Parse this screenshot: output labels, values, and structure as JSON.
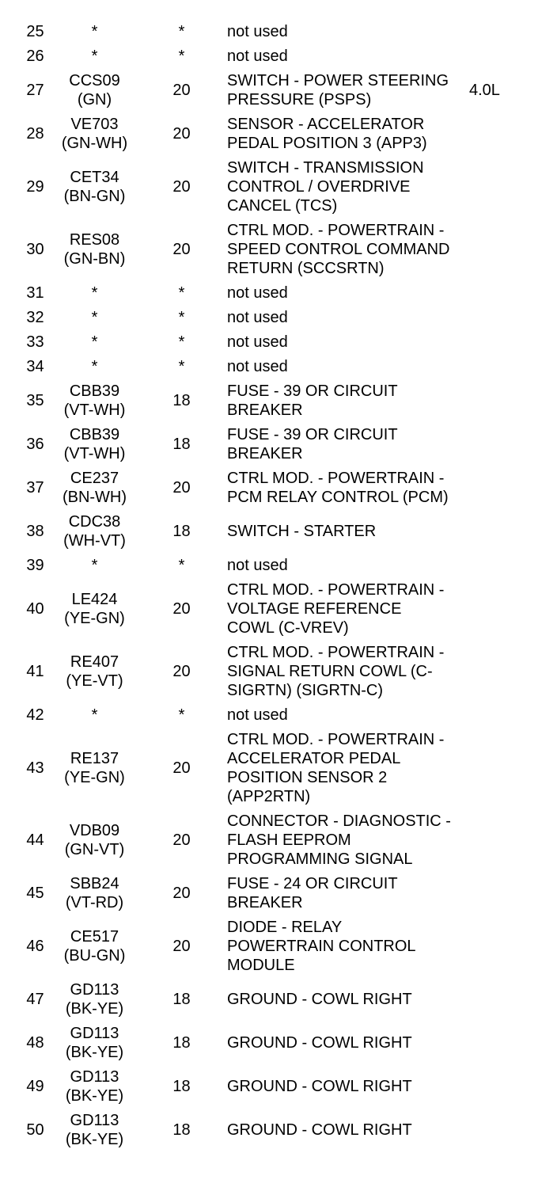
{
  "page": {
    "background_color": "#ffffff",
    "text_color": "#000000",
    "type": "connector-pinout-table"
  },
  "table": {
    "rows": [
      {
        "pin": "25",
        "circuit": "*",
        "color": "",
        "gauge": "*",
        "description": "not used",
        "note": ""
      },
      {
        "pin": "26",
        "circuit": "*",
        "color": "",
        "gauge": "*",
        "description": "not used",
        "note": ""
      },
      {
        "pin": "27",
        "circuit": "CCS09",
        "color": "(GN)",
        "gauge": "20",
        "description": "SWITCH - POWER STEERING\nPRESSURE (PSPS)",
        "note": "4.0L"
      },
      {
        "pin": "28",
        "circuit": "VE703",
        "color": "(GN-WH)",
        "gauge": "20",
        "description": "SENSOR - ACCELERATOR\nPEDAL POSITION 3 (APP3)",
        "note": ""
      },
      {
        "pin": "29",
        "circuit": "CET34",
        "color": "(BN-GN)",
        "gauge": "20",
        "description": "SWITCH - TRANSMISSION\nCONTROL / OVERDRIVE\nCANCEL (TCS)",
        "note": ""
      },
      {
        "pin": "30",
        "circuit": "RES08",
        "color": "(GN-BN)",
        "gauge": "20",
        "description": "CTRL MOD. - POWERTRAIN -\nSPEED CONTROL COMMAND\nRETURN (SCCSRTN)",
        "note": ""
      },
      {
        "pin": "31",
        "circuit": "*",
        "color": "",
        "gauge": "*",
        "description": "not used",
        "note": ""
      },
      {
        "pin": "32",
        "circuit": "*",
        "color": "",
        "gauge": "*",
        "description": "not used",
        "note": ""
      },
      {
        "pin": "33",
        "circuit": "*",
        "color": "",
        "gauge": "*",
        "description": "not used",
        "note": ""
      },
      {
        "pin": "34",
        "circuit": "*",
        "color": "",
        "gauge": "*",
        "description": "not used",
        "note": ""
      },
      {
        "pin": "35",
        "circuit": "CBB39",
        "color": "(VT-WH)",
        "gauge": "18",
        "description": "FUSE - 39 OR CIRCUIT\nBREAKER",
        "note": ""
      },
      {
        "pin": "36",
        "circuit": "CBB39",
        "color": "(VT-WH)",
        "gauge": "18",
        "description": "FUSE - 39 OR CIRCUIT\nBREAKER",
        "note": ""
      },
      {
        "pin": "37",
        "circuit": "CE237",
        "color": "(BN-WH)",
        "gauge": "20",
        "description": "CTRL MOD. - POWERTRAIN -\nPCM RELAY CONTROL (PCM)",
        "note": ""
      },
      {
        "pin": "38",
        "circuit": "CDC38",
        "color": "(WH-VT)",
        "gauge": "18",
        "description": "SWITCH - STARTER",
        "note": ""
      },
      {
        "pin": "39",
        "circuit": "*",
        "color": "",
        "gauge": "*",
        "description": "not used",
        "note": ""
      },
      {
        "pin": "40",
        "circuit": "LE424",
        "color": "(YE-GN)",
        "gauge": "20",
        "description": "CTRL MOD. - POWERTRAIN -\nVOLTAGE REFERENCE\nCOWL (C-VREV)",
        "note": ""
      },
      {
        "pin": "41",
        "circuit": "RE407",
        "color": "(YE-VT)",
        "gauge": "20",
        "description": "CTRL MOD. - POWERTRAIN -\nSIGNAL RETURN COWL (C-\nSIGRTN) (SIGRTN-C)",
        "note": ""
      },
      {
        "pin": "42",
        "circuit": "*",
        "color": "",
        "gauge": "*",
        "description": "not used",
        "note": ""
      },
      {
        "pin": "43",
        "circuit": "RE137",
        "color": "(YE-GN)",
        "gauge": "20",
        "description": "CTRL MOD. - POWERTRAIN -\nACCELERATOR PEDAL\nPOSITION SENSOR 2\n(APP2RTN)",
        "note": ""
      },
      {
        "pin": "44",
        "circuit": "VDB09",
        "color": "(GN-VT)",
        "gauge": "20",
        "description": "CONNECTOR - DIAGNOSTIC -\nFLASH EEPROM\nPROGRAMMING SIGNAL",
        "note": ""
      },
      {
        "pin": "45",
        "circuit": "SBB24",
        "color": "(VT-RD)",
        "gauge": "20",
        "description": "FUSE - 24 OR CIRCUIT\nBREAKER",
        "note": ""
      },
      {
        "pin": "46",
        "circuit": "CE517",
        "color": "(BU-GN)",
        "gauge": "20",
        "description": "DIODE - RELAY\nPOWERTRAIN CONTROL\nMODULE",
        "note": ""
      },
      {
        "pin": "47",
        "circuit": "GD113",
        "color": "(BK-YE)",
        "gauge": "18",
        "description": "GROUND - COWL RIGHT",
        "note": ""
      },
      {
        "pin": "48",
        "circuit": "GD113",
        "color": "(BK-YE)",
        "gauge": "18",
        "description": "GROUND - COWL RIGHT",
        "note": ""
      },
      {
        "pin": "49",
        "circuit": "GD113",
        "color": "(BK-YE)",
        "gauge": "18",
        "description": "GROUND - COWL RIGHT",
        "note": ""
      },
      {
        "pin": "50",
        "circuit": "GD113",
        "color": "(BK-YE)",
        "gauge": "18",
        "description": "GROUND - COWL RIGHT",
        "note": ""
      }
    ]
  }
}
